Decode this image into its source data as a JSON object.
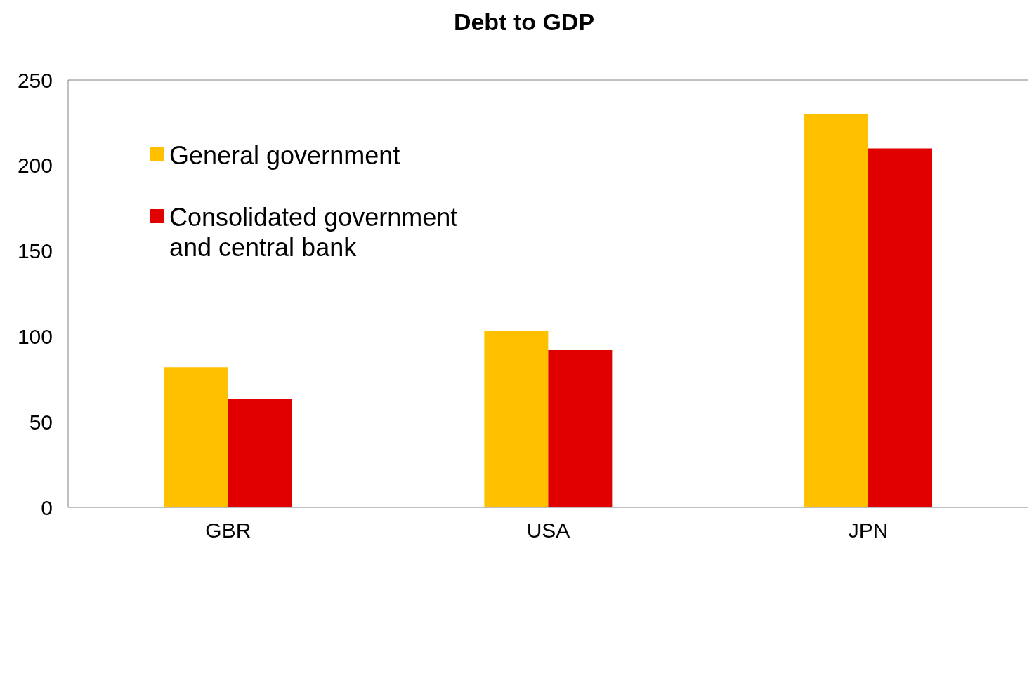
{
  "chart_data": {
    "type": "bar",
    "title": "Debt to GDP",
    "categories": [
      "GBR",
      "USA",
      "JPN"
    ],
    "series": [
      {
        "name": "General government",
        "color": "#ffc000",
        "values": [
          82,
          103,
          230
        ]
      },
      {
        "name": "Consolidated government and central bank",
        "color": "#e00000",
        "values": [
          63.5,
          92,
          210
        ]
      }
    ],
    "ylim": [
      0,
      250
    ],
    "yticks": [
      0,
      50,
      100,
      150,
      200,
      250
    ],
    "legend": "top left"
  }
}
